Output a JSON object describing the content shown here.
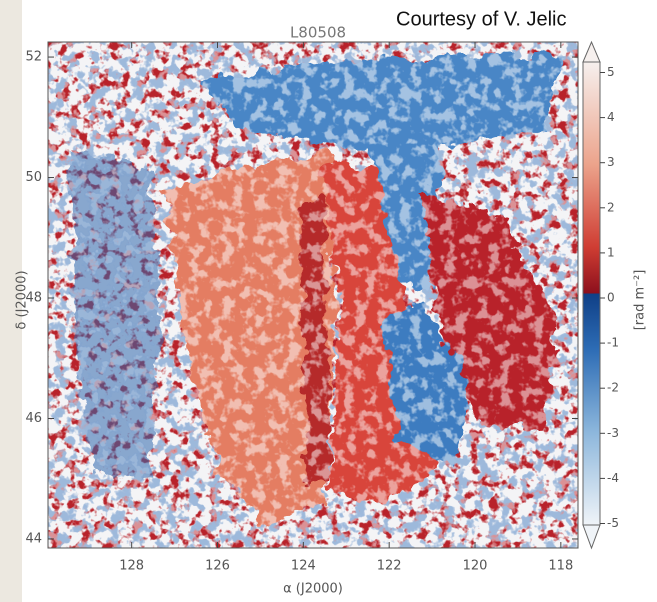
{
  "chart_data": {
    "type": "image",
    "title": "L80508",
    "annotation": "Courtesy of V. Jelic",
    "xlabel": "α (J2000)",
    "ylabel": "δ (J2000)",
    "colorbar_label": "[rad m⁻²]",
    "xlim": [
      129.95,
      117.6
    ],
    "ylim": [
      43.85,
      52.25
    ],
    "xticks": [
      128,
      126,
      124,
      122,
      120,
      118
    ],
    "yticks": [
      44,
      46,
      48,
      50,
      52
    ],
    "clim": [
      -5,
      5
    ],
    "cticks": [
      -5,
      -4,
      -3,
      -2,
      -1,
      0,
      1,
      2,
      3,
      4,
      5
    ]
  }
}
